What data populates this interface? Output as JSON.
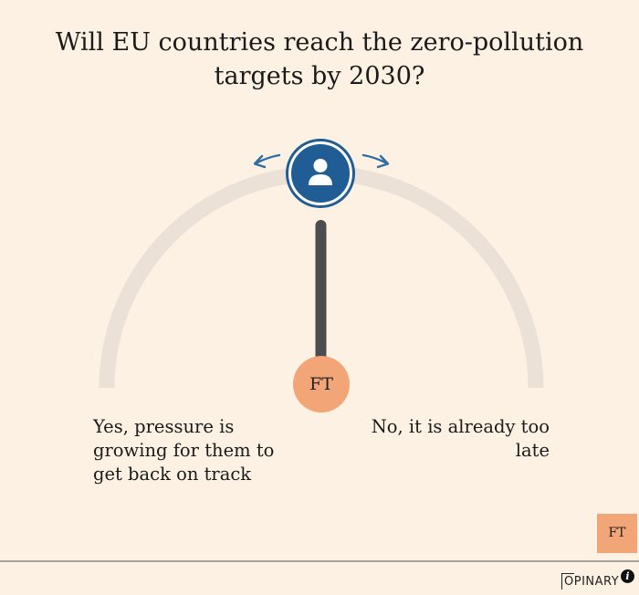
{
  "poll": {
    "question": "Will EU countries reach the zero-pollution targets by 2030?",
    "answer_left": "Yes, pressure is growing for them to get back on track",
    "answer_right": "No, it is already too late",
    "hub_label": "FT",
    "badge_label": "FT",
    "slider_value": 0.5
  },
  "footer": {
    "brand": "OPINARY",
    "brand_first": "O",
    "brand_rest": "PINARY",
    "info_glyph": "i"
  },
  "icons": {
    "knob": "user-icon",
    "left_arrow": "arrow-left-icon",
    "right_arrow": "arrow-right-icon",
    "info": "info-icon"
  },
  "colors": {
    "background": "#fdf1e3",
    "arc": "#ebe1d6",
    "needle": "#4a4c4e",
    "knob": "#1f5d94",
    "hub": "#f2a576",
    "footer_line": "#a7a3a0"
  }
}
